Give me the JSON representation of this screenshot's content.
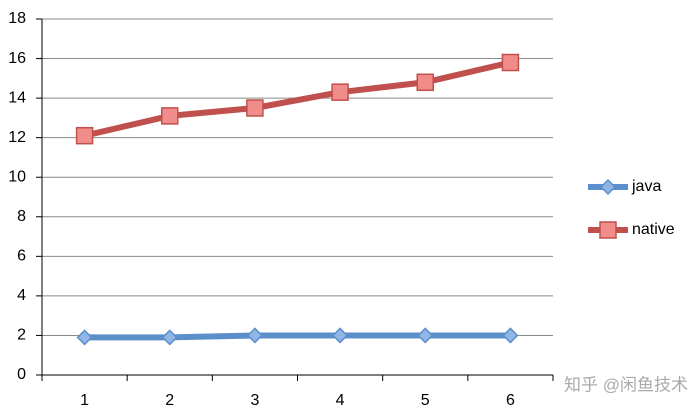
{
  "chart_data": {
    "type": "line",
    "categories": [
      "1",
      "2",
      "3",
      "4",
      "5",
      "6"
    ],
    "series": [
      {
        "name": "java",
        "color": "#5b8fca",
        "marker": "diamond",
        "values": [
          1.9,
          1.9,
          2.0,
          2.0,
          2.0,
          2.0
        ]
      },
      {
        "name": "native",
        "color": "#c0504d",
        "marker": "square",
        "values": [
          12.1,
          13.1,
          13.5,
          14.3,
          14.8,
          15.8
        ]
      }
    ],
    "ylim": [
      0,
      18
    ],
    "yticks": [
      0,
      2,
      4,
      6,
      8,
      10,
      12,
      14,
      16,
      18
    ],
    "grid": true,
    "legend": "right",
    "annotation": "知乎 @闲鱼技术"
  }
}
